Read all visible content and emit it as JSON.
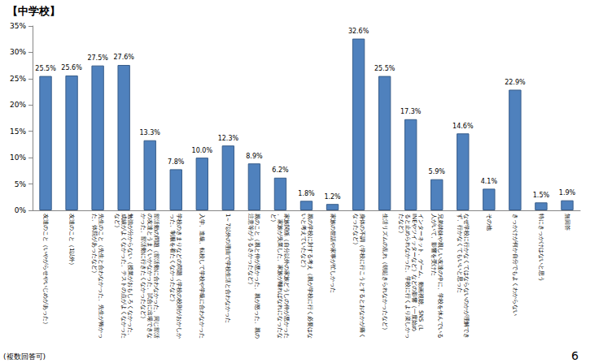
{
  "chart_data": {
    "type": "bar",
    "title": "【中学校】",
    "categories": [
      "友達のこと（いやがらせやいじめがあった）",
      "友達のこと（1以外）",
      "先生のこと（先生と合わなかった、先生が怖かった、体罰があったなど）",
      "勉強が分からない（授業がおもしろくなかった、成績がよくなかった、テストの点がよくなかったなど）",
      "部活動の問題（部活動に合わなかった、同じ部活の友達とうまくいかなかった、試合に出場できなかった、部活動に行きたくなかったなど）",
      "学校のきまりなどの問題（学校の校則がおかしかった、制服を着たくなかったなど）",
      "入学、進級、転校して学校や学級に合わなかった",
      "1～7以外の理由で学校生活と合わなかった",
      "親のこと（親と仲が悪かった、親が怒った、親の注意等がうるさかったなど）",
      "家族関係（自分以外の家族どうしの仲が悪かった、家族が失業した、家族が離ればなれになったなど）",
      "親の学校に対する考え（親が学校に行く必要はないと考えていたなど）",
      "家族の世話や家事が忙しかった",
      "身体の不調（学校に行こうとするとおなかが痛くなったなど）",
      "生活リズムの乱れ（朝起きられなかったなど）",
      "インターネット、ゲーム、動画視聴、SNS（LINEやツイッターなど）などの影響（一度始めると止められなかった、学校に行くより楽しかったなど）",
      "兄弟姉妹や親しい友達の中に、学校を休んでいる人がいて、影響を受けた",
      "なぜ学校に行かなくてはならないのかが理解できず、行かなくてもいいと思った",
      "その他",
      "きっかけが何か自分でもよくわからない",
      "特にきっかけはないと思う",
      "無回答"
    ],
    "values": [
      25.5,
      25.6,
      27.5,
      27.6,
      13.3,
      7.8,
      10.0,
      12.3,
      8.9,
      6.2,
      1.8,
      1.2,
      32.6,
      25.5,
      17.3,
      5.9,
      14.6,
      4.1,
      22.9,
      1.5,
      1.9
    ],
    "value_labels": [
      "25.5%",
      "25.6%",
      "27.5%",
      "27.6%",
      "13.3%",
      "7.8%",
      "10.0%",
      "12.3%",
      "8.9%",
      "6.2%",
      "1.8%",
      "1.2%",
      "32.6%",
      "25.5%",
      "17.3%",
      "5.9%",
      "14.6%",
      "4.1%",
      "22.9%",
      "1.5%",
      "1.9%"
    ],
    "data_labels": true,
    "color": "#4f81bd",
    "ylim": [
      0,
      35
    ],
    "yticks": [
      {
        "value": 0,
        "label": "0%"
      },
      {
        "value": 5,
        "label": "5%"
      },
      {
        "value": 10,
        "label": "10%"
      },
      {
        "value": 15,
        "label": "15%"
      },
      {
        "value": 20,
        "label": "20%"
      },
      {
        "value": 25,
        "label": "25%"
      },
      {
        "value": 30,
        "label": "30%"
      },
      {
        "value": 35,
        "label": "35%"
      }
    ],
    "grid": false,
    "annotations": [
      "(複数回答可)",
      "6"
    ]
  }
}
